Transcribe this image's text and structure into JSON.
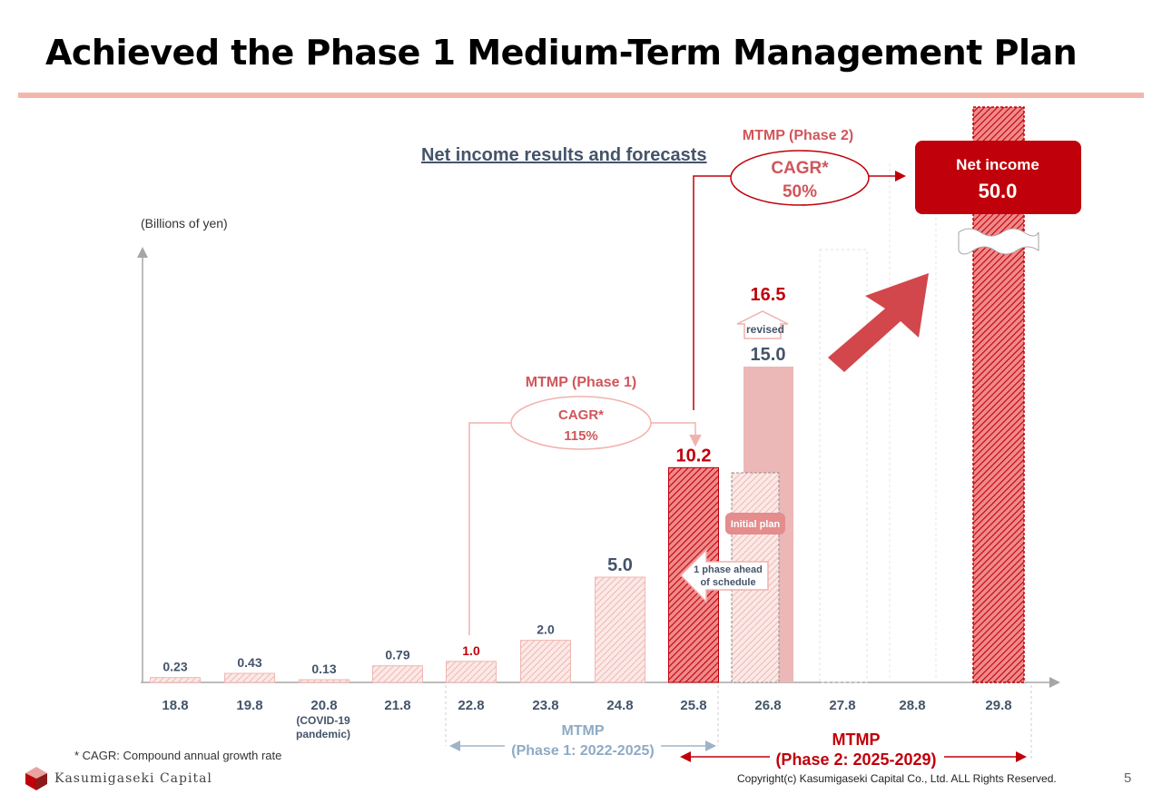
{
  "title": "Achieved the Phase 1 Medium-Term Management Plan",
  "chart_data": {
    "type": "bar",
    "title": "Net income results and forecasts",
    "ylabel": "(Billions of yen)",
    "categories": [
      "18.8",
      "19.8",
      "20.8",
      "21.8",
      "22.8",
      "23.8",
      "24.8",
      "25.8",
      "26.8",
      "27.8",
      "28.8",
      "29.8"
    ],
    "category_notes": {
      "20.8": "(COVID-19\npandemic)"
    },
    "values": [
      0.23,
      0.43,
      0.13,
      0.79,
      1.0,
      2.0,
      5.0,
      10.2,
      15.0,
      null,
      null,
      50.0
    ],
    "value_labels": [
      "0.23",
      "0.43",
      "0.13",
      "0.79",
      "1.0",
      "2.0",
      "5.0",
      "10.2",
      "15.0",
      "",
      "",
      "50.0"
    ],
    "initial_plan": {
      "category": "26.8",
      "value": 10.2,
      "label": "Initial plan"
    },
    "revised": {
      "category": "26.8",
      "value": 16.5,
      "label": "16.5",
      "note": "revised"
    },
    "ahead_note": "1 phase ahead\nof schedule",
    "target": {
      "label": "Net income",
      "value": "50.0"
    },
    "phase1": {
      "title": "MTMP (Phase 1)",
      "cagr_label": "CAGR*",
      "cagr": "115%",
      "range": "MTMP\n(Phase 1: 2022-2025)"
    },
    "phase2": {
      "title": "MTMP (Phase 2)",
      "cagr_label": "CAGR*",
      "cagr": "50%",
      "range": "MTMP\n(Phase 2: 2025-2029)"
    },
    "colors": {
      "result": "#f3c9c4",
      "highlight": "#c0000a",
      "forecast": "#ecb7b7",
      "text": "#44546a",
      "red_text": "#c0000a",
      "pink_text": "#d0565a"
    }
  },
  "footnote": "* CAGR: Compound annual growth rate",
  "logo_text": "Kasumigaseki Capital",
  "copyright": "Copyright(c) Kasumigaseki Capital Co., Ltd. ALL Rights Reserved.",
  "page_number": "5"
}
